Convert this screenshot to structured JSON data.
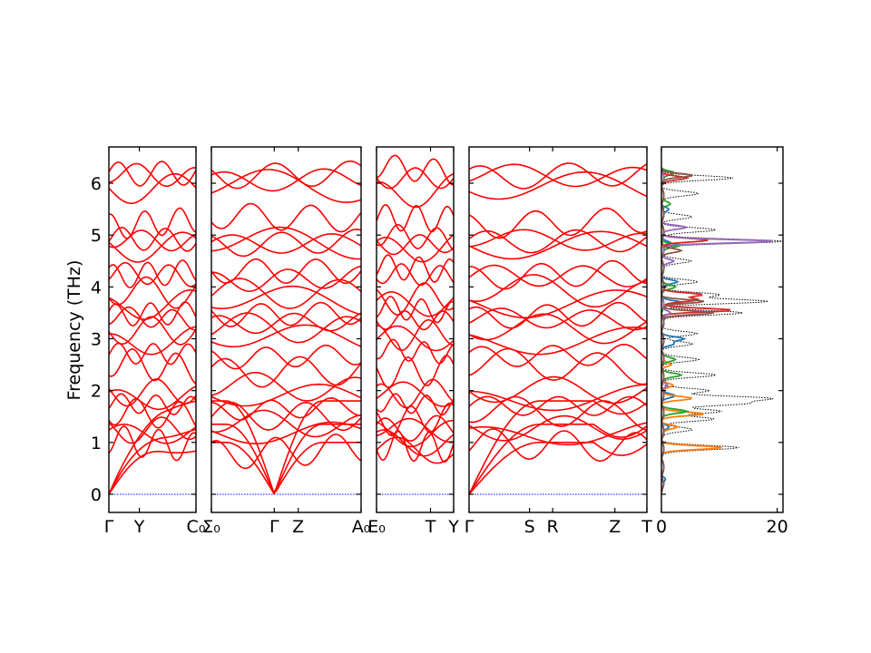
{
  "chart_data": [
    {
      "type": "line",
      "subtype": "phonon-band-structure",
      "ylabel": "Frequency (THz)",
      "ylim": [
        -0.35,
        6.7
      ],
      "yticks": [
        0,
        1,
        2,
        3,
        4,
        5,
        6
      ],
      "band_color": "#ff0000",
      "zero_line_color": "#0000ff",
      "segments": [
        {
          "from": "Γ",
          "to": "C₀",
          "tick_labels": [
            "Γ",
            "Y",
            "C₀"
          ],
          "tick_positions": [
            0,
            0.35,
            1
          ]
        },
        {
          "from": "Σ₀",
          "to": "A₀",
          "tick_labels": [
            "Σ₀",
            "Γ",
            "Z",
            "A₀"
          ],
          "tick_positions": [
            0,
            0.42,
            0.58,
            1
          ]
        },
        {
          "from": "E₀",
          "to": "Y",
          "tick_labels": [
            "E₀",
            "T",
            "Y"
          ],
          "tick_positions": [
            0,
            0.7,
            1
          ]
        },
        {
          "from": "Γ",
          "to": "T",
          "tick_labels": [
            "Γ",
            "S",
            "R",
            "Z",
            "T"
          ],
          "tick_positions": [
            0,
            0.34,
            0.47,
            0.82,
            1
          ]
        }
      ],
      "bands_at_gamma": [
        0,
        0,
        0,
        0.9,
        1.2,
        1.3,
        1.5,
        1.7,
        1.9,
        2.0,
        2.4,
        2.7,
        3.0,
        3.15,
        3.35,
        3.5,
        3.7,
        3.85,
        4.2,
        4.3,
        4.8,
        4.85,
        4.9,
        5.3,
        5.9,
        6.1,
        6.2
      ]
    },
    {
      "type": "line",
      "subtype": "phonon-dos",
      "xlim": [
        0,
        21
      ],
      "xticks": [
        0,
        20
      ],
      "total_color": "#000000",
      "series": [
        {
          "color": "#1f77b4",
          "peaks": [
            [
              0.3,
              0.5
            ],
            [
              1.3,
              1.0
            ],
            [
              1.9,
              2.0
            ],
            [
              2.9,
              1.8
            ],
            [
              3.0,
              3.5
            ],
            [
              3.7,
              3.0
            ],
            [
              4.1,
              2.5
            ],
            [
              4.85,
              1.5
            ],
            [
              5.5,
              1.0
            ]
          ]
        },
        {
          "color": "#ff7f0e",
          "peaks": [
            [
              0.9,
              10.0
            ],
            [
              1.3,
              2.5
            ],
            [
              1.55,
              7.0
            ],
            [
              1.85,
              5.0
            ],
            [
              2.1,
              2.0
            ],
            [
              2.5,
              1.5
            ]
          ]
        },
        {
          "color": "#2ca02c",
          "peaks": [
            [
              1.6,
              4.0
            ],
            [
              2.3,
              3.0
            ],
            [
              2.6,
              2.0
            ],
            [
              4.0,
              2.0
            ],
            [
              4.8,
              3.0
            ],
            [
              5.6,
              1.5
            ],
            [
              6.2,
              2.0
            ]
          ]
        },
        {
          "color": "#d62728",
          "peaks": [
            [
              3.55,
              12.0
            ],
            [
              3.75,
              6.0
            ],
            [
              3.85,
              7.0
            ],
            [
              4.9,
              8.0
            ],
            [
              6.1,
              4.0
            ]
          ]
        },
        {
          "color": "#9467bd",
          "peaks": [
            [
              4.88,
              19.0
            ],
            [
              5.15,
              4.0
            ],
            [
              4.5,
              2.0
            ],
            [
              3.5,
              1.5
            ],
            [
              2.1,
              1.0
            ]
          ]
        },
        {
          "color": "#8c564b",
          "peaks": [
            [
              3.5,
              9.0
            ],
            [
              3.72,
              7.0
            ],
            [
              4.7,
              3.0
            ],
            [
              6.15,
              5.0
            ]
          ]
        }
      ],
      "total_peaks": [
        [
          0.9,
          13.0
        ],
        [
          1.25,
          5.0
        ],
        [
          1.45,
          9.0
        ],
        [
          1.6,
          10.0
        ],
        [
          1.75,
          14.0
        ],
        [
          1.85,
          18.0
        ],
        [
          2.0,
          8.0
        ],
        [
          2.3,
          9.0
        ],
        [
          2.6,
          6.0
        ],
        [
          2.9,
          5.0
        ],
        [
          3.1,
          6.0
        ],
        [
          3.5,
          14.0
        ],
        [
          3.72,
          18.0
        ],
        [
          3.85,
          10.0
        ],
        [
          4.1,
          6.0
        ],
        [
          4.5,
          5.0
        ],
        [
          4.88,
          21.0
        ],
        [
          5.1,
          9.0
        ],
        [
          5.35,
          5.0
        ],
        [
          5.8,
          6.0
        ],
        [
          6.1,
          12.0
        ]
      ]
    }
  ]
}
